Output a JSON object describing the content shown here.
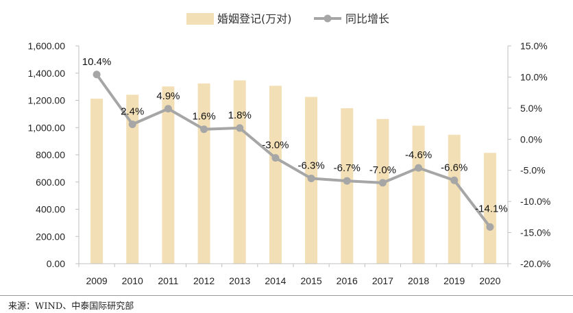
{
  "chart_data": {
    "type": "bar",
    "categories": [
      "2009",
      "2010",
      "2011",
      "2012",
      "2013",
      "2014",
      "2015",
      "2016",
      "2017",
      "2018",
      "2019",
      "2020"
    ],
    "series": [
      {
        "name": "婚姻登记(万对)",
        "type": "bar",
        "axis": "left",
        "values": [
          1212,
          1241,
          1302,
          1324,
          1347,
          1307,
          1225,
          1142,
          1063,
          1014,
          947,
          814
        ]
      },
      {
        "name": "同比增长",
        "type": "line",
        "axis": "right",
        "values": [
          10.4,
          2.4,
          4.9,
          1.6,
          1.8,
          -3.0,
          -6.3,
          -6.7,
          -7.0,
          -4.6,
          -6.6,
          -14.1
        ],
        "labels": [
          "10.4%",
          "2.4%",
          "4.9%",
          "1.6%",
          "1.8%",
          "-3.0%",
          "-6.3%",
          "-6.7%",
          "-7.0%",
          "-4.6%",
          "-6.6%",
          "-14.1%"
        ]
      }
    ],
    "left_axis": {
      "ylim": [
        0,
        1600
      ],
      "ticks": [
        "0.00",
        "200.00",
        "400.00",
        "600.00",
        "800.00",
        "1,000.00",
        "1,200.00",
        "1,400.00",
        "1,600.00"
      ]
    },
    "right_axis": {
      "ylim": [
        -20,
        15
      ],
      "ticks": [
        "-20.0%",
        "-15.0%",
        "-10.0%",
        "-5.0%",
        "0.0%",
        "5.0%",
        "10.0%",
        "15.0%"
      ]
    },
    "grid": false,
    "legend_position": "top-center",
    "colors": {
      "bar": "#F3DFB5",
      "line": "#A6A6A6",
      "marker": "#A6A6A6"
    }
  },
  "source": "来源：WIND、中泰国际研究部"
}
